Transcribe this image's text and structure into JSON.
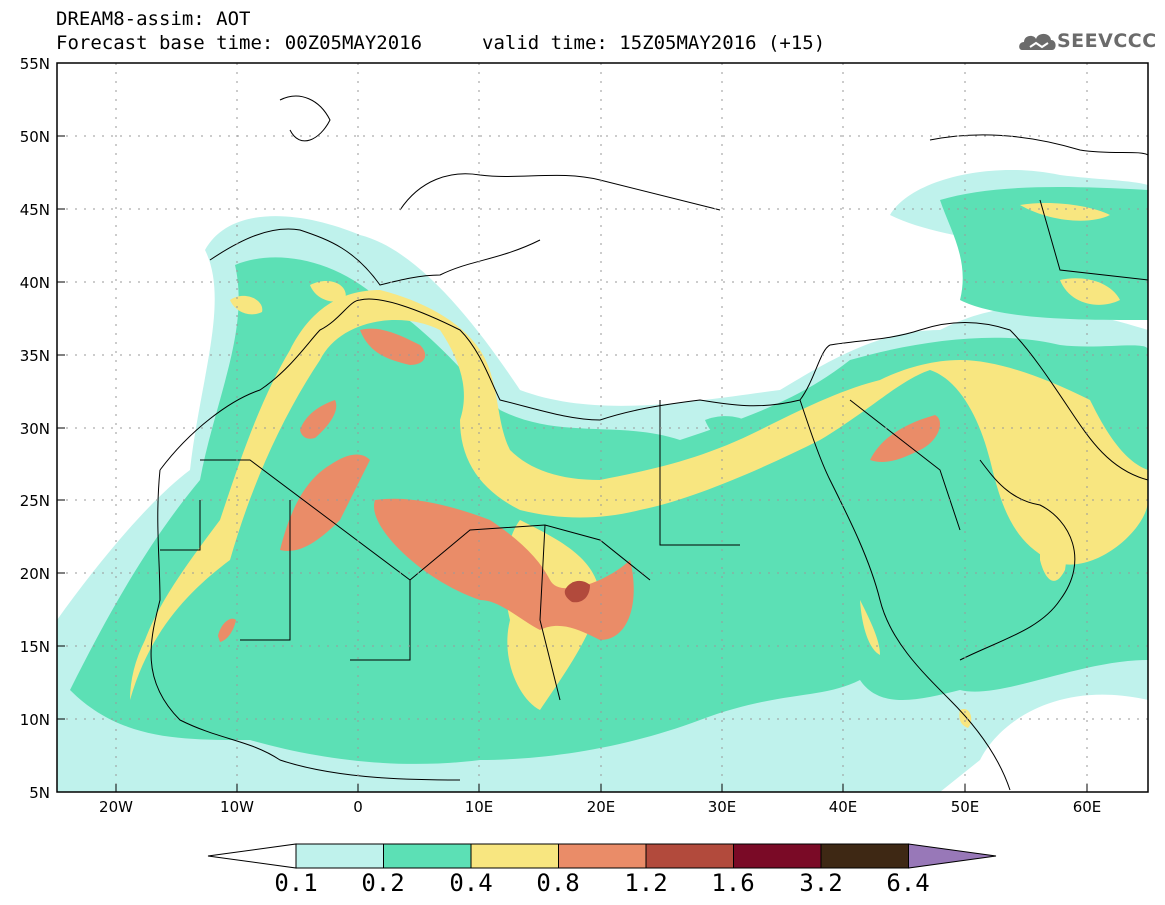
{
  "title": {
    "line1": "DREAM8-assim: AOT",
    "line2": "Forecast base time: 00Z05MAY2016",
    "valid": "valid time: 15Z05MAY2016 (+15)"
  },
  "logo": {
    "text": "SEEVCCC",
    "icon": "cloud-logo-icon",
    "color": "#6b6b6b"
  },
  "axes": {
    "lat_labels": [
      "55N",
      "50N",
      "45N",
      "40N",
      "35N",
      "30N",
      "25N",
      "20N",
      "15N",
      "10N",
      "5N"
    ],
    "lon_labels": [
      "20W",
      "10W",
      "0",
      "10E",
      "20E",
      "30E",
      "40E",
      "50E",
      "60E"
    ]
  },
  "legend": {
    "colors": [
      "#ffffff",
      "#bff2ec",
      "#5ce0b5",
      "#f8e680",
      "#ea8c68",
      "#b24a3c",
      "#7a0a26",
      "#3e2814",
      "#9878b8"
    ],
    "labels": [
      "0.1",
      "0.2",
      "0.4",
      "0.8",
      "1.2",
      "1.6",
      "3.2",
      "6.4"
    ]
  }
}
